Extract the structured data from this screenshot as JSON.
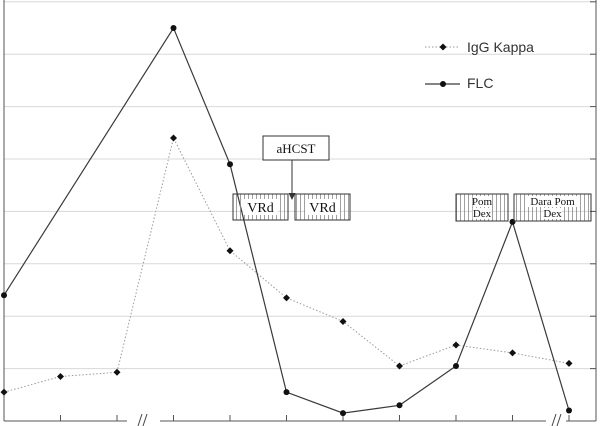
{
  "chart_data": {
    "type": "line",
    "title": "",
    "xlabel": "",
    "ylabel": "",
    "x_points": 11,
    "ylim": [
      0,
      8
    ],
    "y_ticks": [
      0,
      1,
      2,
      3,
      4,
      5,
      6,
      7,
      8
    ],
    "grid": "horizontal",
    "axis_break": "between points 3 and 4",
    "legend_position": "top-right",
    "series": [
      {
        "name": "IgG Kappa",
        "line_style": "dotted",
        "marker": "diamond",
        "color": "#9a9a9a",
        "values": [
          0.55,
          0.85,
          0.93,
          5.4,
          3.25,
          2.35,
          1.9,
          1.05,
          1.45,
          1.3,
          1.1
        ]
      },
      {
        "name": "FLC",
        "line_style": "solid",
        "marker": "circle",
        "color": "#3a3a3a",
        "values": [
          2.4,
          null,
          null,
          7.5,
          4.9,
          0.55,
          0.15,
          0.3,
          1.05,
          3.8,
          0.2
        ]
      }
    ],
    "annotations": [
      {
        "text": "aHCST",
        "at_x": 5.1
      },
      {
        "text": "VRd",
        "at_x": 4.5
      },
      {
        "text": "VRd",
        "at_x": 5.6
      },
      {
        "text": [
          "Pom",
          "Dex"
        ],
        "at_x": 8.2
      },
      {
        "text": [
          "Dara Pom",
          "Dex"
        ],
        "at_x": 9.6
      }
    ],
    "break_symbol": "//"
  }
}
